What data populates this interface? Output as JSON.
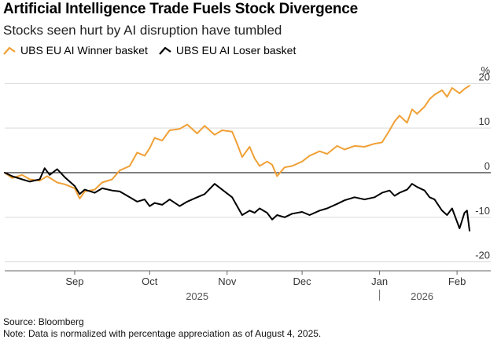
{
  "title": "Artificial Intelligence Trade Fuels Stock Divergence",
  "subtitle": "Stocks seen hurt by AI disruption have tumbled",
  "source": "Source: Bloomberg",
  "note": "Note: Data is normalized with percentage appreciation as of August 4, 2025.",
  "colors": {
    "winner": "#f0a035",
    "loser": "#000000",
    "grid": "#d9d9d9",
    "zero": "#000000",
    "axis_text": "#333333"
  },
  "chart_data": {
    "type": "line",
    "xlabel": "",
    "ylabel": "%",
    "ylim": [
      -22,
      22
    ],
    "yticks": [
      20,
      10,
      0,
      -10,
      -20
    ],
    "grid": true,
    "legend_position": "top-left",
    "x_range": [
      "2025-08-04",
      "2026-02-06"
    ],
    "month_ticks": [
      {
        "date": "2025-09-01",
        "label": "Sep"
      },
      {
        "date": "2025-10-01",
        "label": "Oct"
      },
      {
        "date": "2025-11-01",
        "label": "Nov"
      },
      {
        "date": "2025-12-01",
        "label": "Dec"
      },
      {
        "date": "2026-01-01",
        "label": "Jan"
      },
      {
        "date": "2026-02-01",
        "label": "Feb"
      }
    ],
    "year_labels": [
      {
        "date": "2025-10-20",
        "label": "2025"
      },
      {
        "date": "2026-01-18",
        "label": "2026"
      }
    ],
    "series": [
      {
        "name": "UBS EU AI Winner basket",
        "color": "#f0a035",
        "points": [
          [
            "2025-08-04",
            0
          ],
          [
            "2025-08-07",
            -1.2
          ],
          [
            "2025-08-11",
            -0.5
          ],
          [
            "2025-08-14",
            -1.5
          ],
          [
            "2025-08-18",
            -1.8
          ],
          [
            "2025-08-21",
            -0.8
          ],
          [
            "2025-08-25",
            -2.2
          ],
          [
            "2025-08-28",
            -2.6
          ],
          [
            "2025-09-01",
            -3.5
          ],
          [
            "2025-09-03",
            -5.8
          ],
          [
            "2025-09-05",
            -4.2
          ],
          [
            "2025-09-09",
            -3.8
          ],
          [
            "2025-09-12",
            -2.2
          ],
          [
            "2025-09-16",
            -1.5
          ],
          [
            "2025-09-19",
            0.5
          ],
          [
            "2025-09-23",
            1.5
          ],
          [
            "2025-09-26",
            4.5
          ],
          [
            "2025-09-29",
            3.8
          ],
          [
            "2025-10-01",
            5.5
          ],
          [
            "2025-10-03",
            7.8
          ],
          [
            "2025-10-06",
            7.2
          ],
          [
            "2025-10-09",
            9.5
          ],
          [
            "2025-10-13",
            9.8
          ],
          [
            "2025-10-16",
            10.8
          ],
          [
            "2025-10-20",
            8.8
          ],
          [
            "2025-10-23",
            10.5
          ],
          [
            "2025-10-27",
            8.5
          ],
          [
            "2025-10-30",
            9.5
          ],
          [
            "2025-11-03",
            9.2
          ],
          [
            "2025-11-05",
            6.5
          ],
          [
            "2025-11-07",
            3.5
          ],
          [
            "2025-11-10",
            5.8
          ],
          [
            "2025-11-12",
            3.2
          ],
          [
            "2025-11-14",
            1.5
          ],
          [
            "2025-11-17",
            2.5
          ],
          [
            "2025-11-19",
            1.8
          ],
          [
            "2025-11-21",
            -0.8
          ],
          [
            "2025-11-24",
            1.2
          ],
          [
            "2025-11-27",
            1.5
          ],
          [
            "2025-12-01",
            2.5
          ],
          [
            "2025-12-04",
            3.8
          ],
          [
            "2025-12-08",
            4.8
          ],
          [
            "2025-12-11",
            4.2
          ],
          [
            "2025-12-15",
            6.0
          ],
          [
            "2025-12-18",
            5.2
          ],
          [
            "2025-12-22",
            6.0
          ],
          [
            "2025-12-26",
            5.8
          ],
          [
            "2025-12-30",
            6.5
          ],
          [
            "2026-01-02",
            6.8
          ],
          [
            "2026-01-05",
            9.5
          ],
          [
            "2026-01-07",
            11.5
          ],
          [
            "2026-01-09",
            12.8
          ],
          [
            "2026-01-12",
            11.2
          ],
          [
            "2026-01-14",
            14.2
          ],
          [
            "2026-01-16",
            13.2
          ],
          [
            "2026-01-19",
            14.8
          ],
          [
            "2026-01-21",
            16.5
          ],
          [
            "2026-01-23",
            17.5
          ],
          [
            "2026-01-26",
            18.5
          ],
          [
            "2026-01-28",
            17.0
          ],
          [
            "2026-01-30",
            19.0
          ],
          [
            "2026-02-02",
            17.8
          ],
          [
            "2026-02-04",
            18.8
          ],
          [
            "2026-02-06",
            19.5
          ]
        ]
      },
      {
        "name": "UBS EU AI Loser basket",
        "color": "#000000",
        "points": [
          [
            "2025-08-04",
            0
          ],
          [
            "2025-08-07",
            -0.8
          ],
          [
            "2025-08-11",
            -1.5
          ],
          [
            "2025-08-14",
            -2.0
          ],
          [
            "2025-08-18",
            -1.5
          ],
          [
            "2025-08-20",
            1.0
          ],
          [
            "2025-08-22",
            -0.5
          ],
          [
            "2025-08-25",
            0.8
          ],
          [
            "2025-08-28",
            -1.0
          ],
          [
            "2025-09-01",
            -3.0
          ],
          [
            "2025-09-03",
            -4.8
          ],
          [
            "2025-09-05",
            -3.8
          ],
          [
            "2025-09-09",
            -4.5
          ],
          [
            "2025-09-12",
            -3.5
          ],
          [
            "2025-09-16",
            -4.0
          ],
          [
            "2025-09-19",
            -4.2
          ],
          [
            "2025-09-23",
            -5.5
          ],
          [
            "2025-09-26",
            -6.5
          ],
          [
            "2025-09-29",
            -6.0
          ],
          [
            "2025-10-01",
            -7.5
          ],
          [
            "2025-10-03",
            -6.8
          ],
          [
            "2025-10-06",
            -7.2
          ],
          [
            "2025-10-09",
            -6.0
          ],
          [
            "2025-10-13",
            -7.5
          ],
          [
            "2025-10-16",
            -6.5
          ],
          [
            "2025-10-20",
            -5.5
          ],
          [
            "2025-10-23",
            -4.8
          ],
          [
            "2025-10-27",
            -2.5
          ],
          [
            "2025-10-30",
            -3.8
          ],
          [
            "2025-11-03",
            -5.5
          ],
          [
            "2025-11-05",
            -7.5
          ],
          [
            "2025-11-07",
            -9.5
          ],
          [
            "2025-11-10",
            -8.5
          ],
          [
            "2025-11-12",
            -9.0
          ],
          [
            "2025-11-14",
            -8.0
          ],
          [
            "2025-11-17",
            -9.0
          ],
          [
            "2025-11-19",
            -10.5
          ],
          [
            "2025-11-21",
            -9.5
          ],
          [
            "2025-11-24",
            -10.0
          ],
          [
            "2025-11-27",
            -9.2
          ],
          [
            "2025-12-01",
            -8.8
          ],
          [
            "2025-12-04",
            -9.5
          ],
          [
            "2025-12-08",
            -8.5
          ],
          [
            "2025-12-11",
            -8.0
          ],
          [
            "2025-12-15",
            -7.0
          ],
          [
            "2025-12-18",
            -6.2
          ],
          [
            "2025-12-22",
            -5.5
          ],
          [
            "2025-12-26",
            -6.0
          ],
          [
            "2025-12-30",
            -5.5
          ],
          [
            "2026-01-02",
            -4.5
          ],
          [
            "2026-01-05",
            -4.0
          ],
          [
            "2026-01-07",
            -5.2
          ],
          [
            "2026-01-09",
            -4.5
          ],
          [
            "2026-01-12",
            -3.8
          ],
          [
            "2026-01-14",
            -2.5
          ],
          [
            "2026-01-16",
            -3.2
          ],
          [
            "2026-01-19",
            -4.0
          ],
          [
            "2026-01-21",
            -5.5
          ],
          [
            "2026-01-23",
            -6.0
          ],
          [
            "2026-01-26",
            -8.5
          ],
          [
            "2026-01-28",
            -9.5
          ],
          [
            "2026-01-30",
            -8.0
          ],
          [
            "2026-02-02",
            -12.5
          ],
          [
            "2026-02-04",
            -9.0
          ],
          [
            "2026-02-05",
            -8.5
          ],
          [
            "2026-02-06",
            -13.0
          ]
        ]
      }
    ]
  }
}
